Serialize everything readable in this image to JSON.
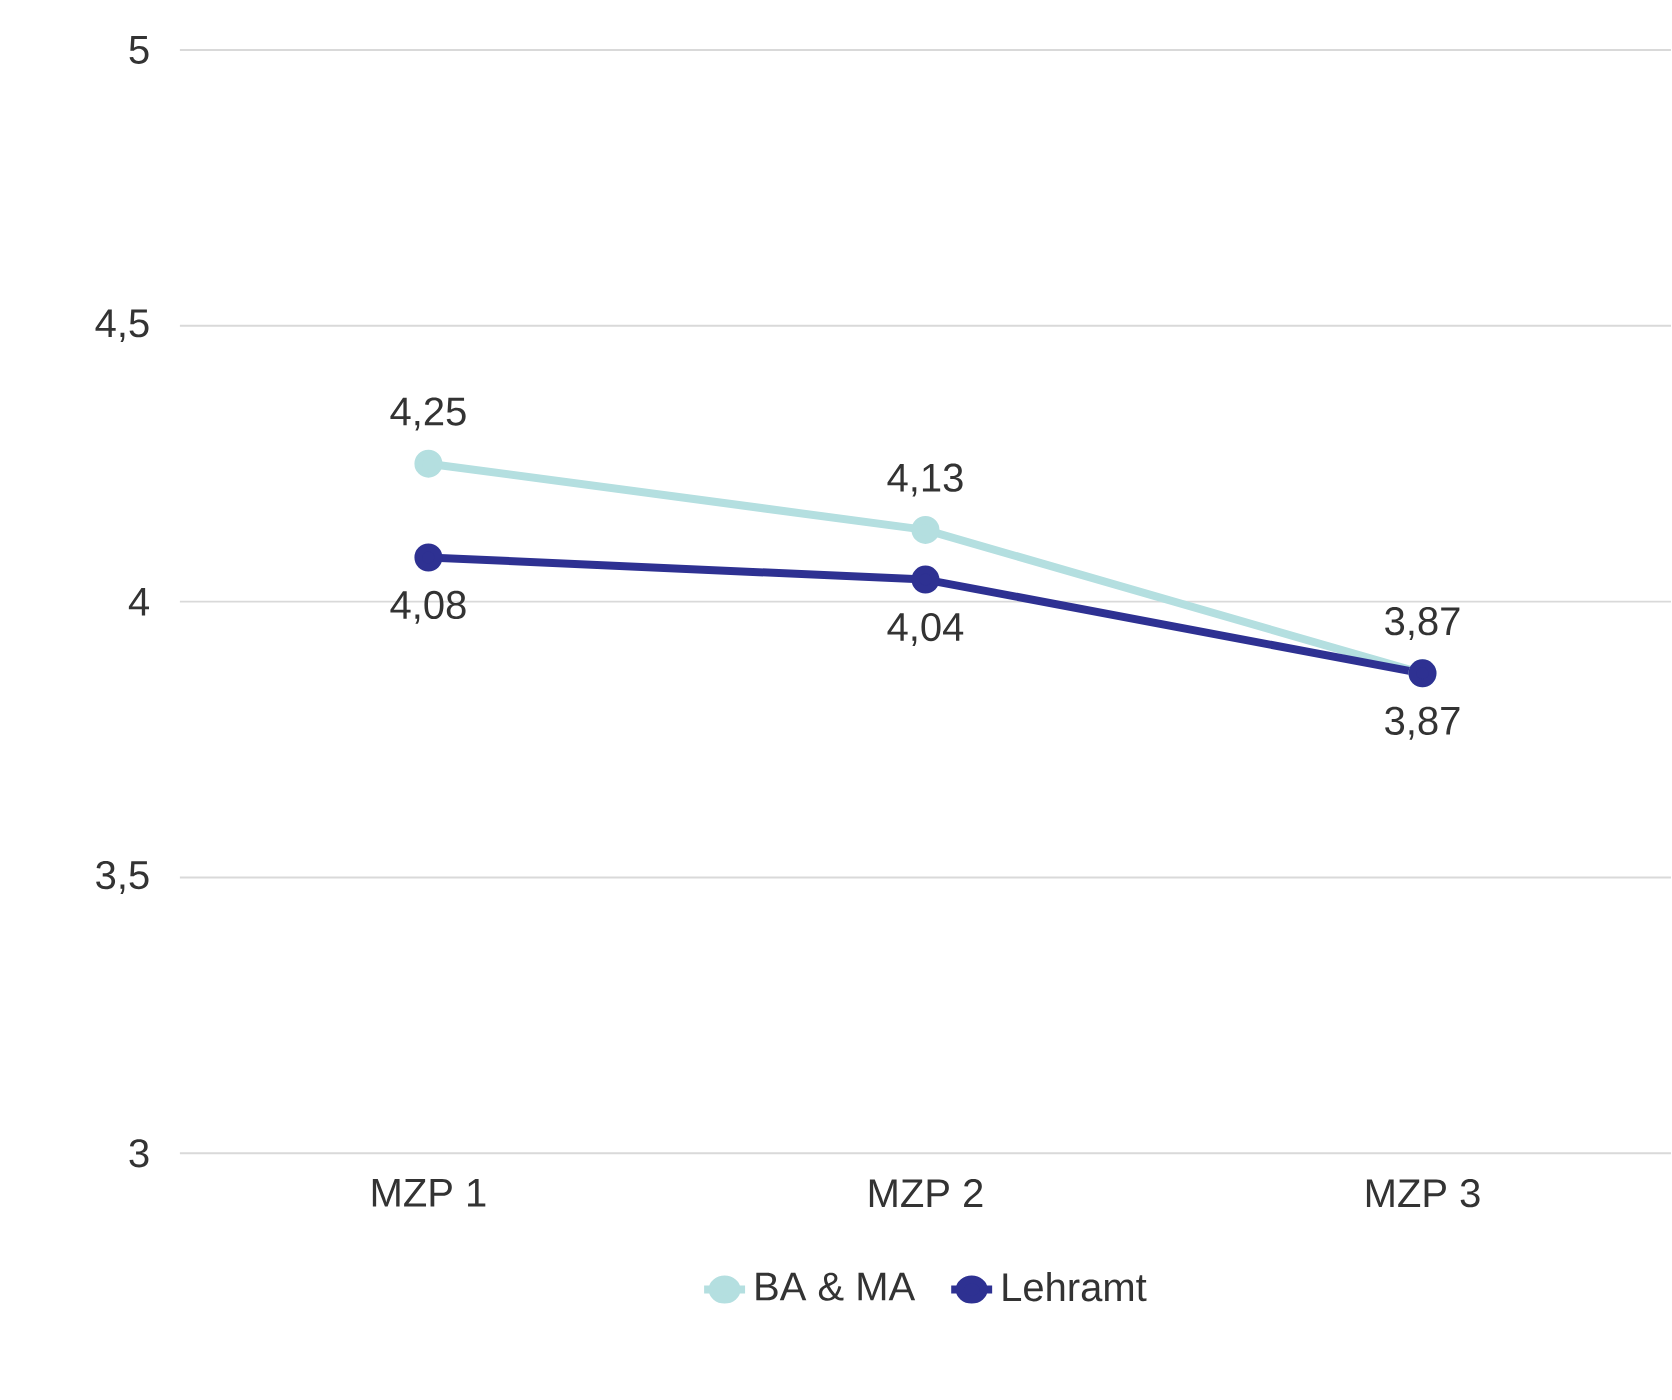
{
  "chart_data": {
    "type": "line",
    "categories": [
      "MZP 1",
      "MZP 2",
      "MZP 3"
    ],
    "series": [
      {
        "name": "BA & MA",
        "color": "#b4dfe0",
        "values": [
          4.25,
          4.13,
          3.87
        ],
        "value_labels": [
          "4,25",
          "4,13",
          "3,87"
        ]
      },
      {
        "name": "Lehramt",
        "color": "#2e3192",
        "values": [
          4.08,
          4.04,
          3.87
        ],
        "value_labels": [
          "4,08",
          "4,04",
          "3,87"
        ]
      }
    ],
    "ylim": [
      3,
      5
    ],
    "yticks": [
      3,
      {
        "value": 3.5,
        "label": "3,5"
      },
      4,
      {
        "value": 4.5,
        "label": "4,5"
      },
      5
    ],
    "grid": "y",
    "legend": "bottom",
    "marker": "circle",
    "line_style": "solid"
  }
}
